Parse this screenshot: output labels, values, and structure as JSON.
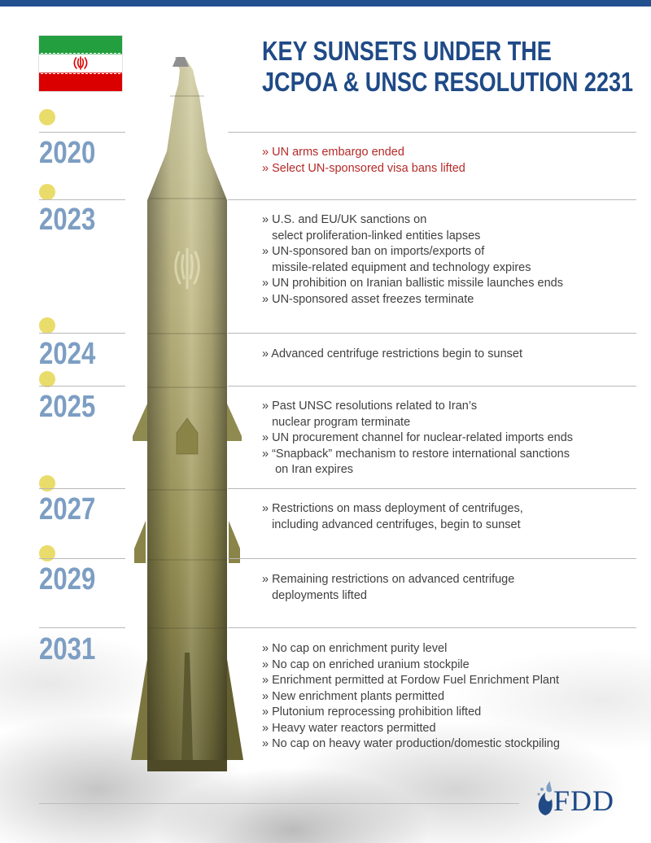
{
  "header": {
    "title_line1": "KEY SUNSETS UNDER THE",
    "title_line2": "JCPOA & UNSC RESOLUTION 2231"
  },
  "flag_icon": "iran-flag-icon",
  "colors": {
    "title": "#1f4a86",
    "year": "#7d9ec3",
    "highlight_text": "#b52a28",
    "body_text": "#404040",
    "dot": "#eadc6a",
    "rocket_body": "#b8b07a"
  },
  "timeline": [
    {
      "year": "2020",
      "events": [
        "» UN arms embargo ended",
        "» Select UN-sponsored visa bans lifted"
      ]
    },
    {
      "year": "2023",
      "events": [
        "» U.S. and EU/UK sanctions on",
        "   select proliferation-linked entities lapses",
        "» UN-sponsored ban on imports/exports of",
        "   missile-related equipment and technology expires",
        "» UN prohibition on Iranian ballistic missile launches ends",
        "» UN-sponsored asset freezes terminate"
      ]
    },
    {
      "year": "2024",
      "events": [
        "» Advanced centrifuge restrictions begin to sunset"
      ]
    },
    {
      "year": "2025",
      "events": [
        "» Past UNSC resolutions related to Iran’s",
        "   nuclear program terminate",
        "» UN procurement channel for nuclear-related imports ends",
        "» “Snapback” mechanism to restore international sanctions",
        "    on Iran expires"
      ]
    },
    {
      "year": "2027",
      "events": [
        "» Restrictions on mass deployment of centrifuges,",
        "   including advanced centrifuges, begin to sunset"
      ]
    },
    {
      "year": "2029",
      "events": [
        "» Remaining restrictions on advanced centrifuge",
        "   deployments lifted"
      ]
    },
    {
      "year": "2031",
      "events": [
        "» No cap on enrichment purity level",
        "» No cap on enriched uranium stockpile",
        "» Enrichment permitted at Fordow Fuel Enrichment Plant",
        "» New enrichment plants permitted",
        "» Plutonium reprocessing prohibition lifted",
        "» Heavy water reactors permitted",
        "» No cap on heavy water production/domestic stockpiling"
      ]
    }
  ],
  "footer": {
    "logo_text": "FDD",
    "logo_icon": "fdd-flame-icon"
  }
}
